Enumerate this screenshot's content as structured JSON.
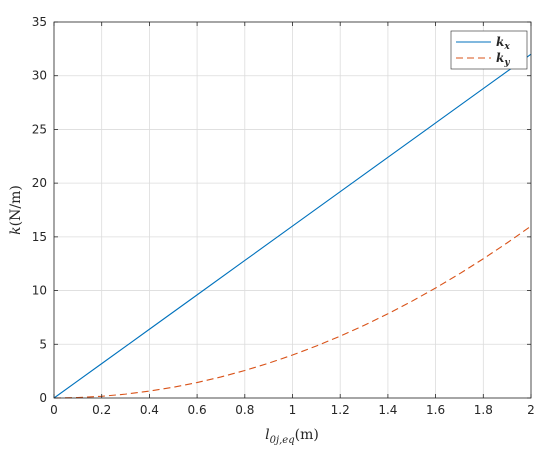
{
  "chart_data": {
    "type": "line",
    "xlabel_main": "l",
    "xlabel_sub": "0j,eq",
    "xlabel_unit": "(m)",
    "ylabel_main": "k",
    "ylabel_unit": "(N/m)",
    "xlim": [
      0,
      2
    ],
    "ylim": [
      0,
      35
    ],
    "xticks": [
      0,
      0.2,
      0.4,
      0.6,
      0.8,
      1,
      1.2,
      1.4,
      1.6,
      1.8,
      2
    ],
    "xtick_labels": [
      "0",
      "0.2",
      "0.4",
      "0.6",
      "0.8",
      "1",
      "1.2",
      "1.4",
      "1.6",
      "1.8",
      "2"
    ],
    "yticks": [
      0,
      5,
      10,
      15,
      20,
      25,
      30,
      35
    ],
    "ytick_labels": [
      "0",
      "5",
      "10",
      "15",
      "20",
      "25",
      "30",
      "35"
    ],
    "grid": true,
    "legend_position": "top-right",
    "series": [
      {
        "name": "k_x",
        "legend_main": "k",
        "legend_sub": "x",
        "color": "#0072BD",
        "style": "solid",
        "x": [
          0,
          0.2,
          0.4,
          0.6,
          0.8,
          1.0,
          1.2,
          1.4,
          1.6,
          1.8,
          2.0
        ],
        "y": [
          0,
          3.2,
          6.4,
          9.6,
          12.8,
          16.0,
          19.2,
          22.4,
          25.6,
          28.8,
          32.0
        ]
      },
      {
        "name": "k_y",
        "legend_main": "k",
        "legend_sub": "y",
        "color": "#D95319",
        "style": "dashed",
        "x": [
          0,
          0.1,
          0.2,
          0.3,
          0.4,
          0.5,
          0.6,
          0.7,
          0.8,
          0.9,
          1.0,
          1.1,
          1.2,
          1.3,
          1.4,
          1.5,
          1.6,
          1.7,
          1.8,
          1.9,
          2.0
        ],
        "y": [
          0,
          0.04,
          0.16,
          0.36,
          0.64,
          1.0,
          1.44,
          1.96,
          2.56,
          3.24,
          4.0,
          4.84,
          5.76,
          6.76,
          7.84,
          9.0,
          10.24,
          11.56,
          12.96,
          14.44,
          16.0
        ]
      }
    ]
  }
}
